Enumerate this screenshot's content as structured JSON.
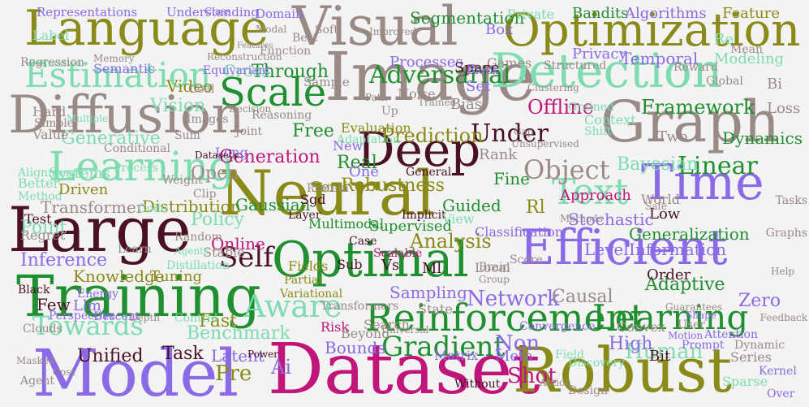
{
  "palette": {
    "background": "#f3f3f3",
    "olive": "#8a8a18",
    "green": "#1f8f2f",
    "mint": "#7ddcb0",
    "taupe": "#9a8a86",
    "purple": "#8a6ae6",
    "magenta": "#c0157a",
    "maroon": "#4a1024"
  },
  "words": [
    {
      "text": "Dataset",
      "color": "magenta"
    },
    {
      "text": "Model",
      "color": "purple"
    },
    {
      "text": "Robust",
      "color": "olive"
    },
    {
      "text": "Training",
      "color": "green"
    },
    {
      "text": "Large",
      "color": "maroon"
    },
    {
      "text": "Neural",
      "color": "olive"
    },
    {
      "text": "Image",
      "color": "taupe"
    },
    {
      "text": "Diffusion",
      "color": "taupe"
    },
    {
      "text": "Language",
      "color": "olive"
    },
    {
      "text": "Visual",
      "color": "taupe"
    },
    {
      "text": "Optimization",
      "color": "olive"
    },
    {
      "text": "Graph",
      "color": "taupe"
    },
    {
      "text": "Efficient",
      "color": "purple"
    },
    {
      "text": "Optimal",
      "color": "green"
    },
    {
      "text": "Deep",
      "color": "maroon"
    },
    {
      "text": "Detection",
      "color": "mint"
    },
    {
      "text": "Learning",
      "color": "mint"
    },
    {
      "text": "Time",
      "color": "purple"
    },
    {
      "text": "Reinforcement",
      "color": "green"
    },
    {
      "text": "Estimation",
      "color": "mint"
    },
    {
      "text": "Scale",
      "color": "green"
    },
    {
      "text": "Text",
      "color": "mint"
    },
    {
      "text": "Learning",
      "color": "green"
    },
    {
      "text": "Aware",
      "color": "mint"
    },
    {
      "text": "Adversarial",
      "color": "green"
    },
    {
      "text": "Towards",
      "color": "mint"
    },
    {
      "text": "Gradient",
      "color": "green"
    },
    {
      "text": "Self",
      "color": "maroon"
    },
    {
      "text": "Object",
      "color": "taupe"
    },
    {
      "text": "Linear",
      "color": "green"
    },
    {
      "text": "Network",
      "color": "purple"
    },
    {
      "text": "Shot",
      "color": "magenta"
    },
    {
      "text": "Human",
      "color": "mint"
    },
    {
      "text": "Under",
      "color": "maroon"
    },
    {
      "text": "Offline",
      "color": "magenta"
    },
    {
      "text": "Framework",
      "color": "green"
    },
    {
      "text": "Prediction",
      "color": "olive"
    },
    {
      "text": "Analysis",
      "color": "olive"
    },
    {
      "text": "Generation",
      "color": "magenta"
    },
    {
      "text": "Inference",
      "color": "purple"
    },
    {
      "text": "Benchmark",
      "color": "mint"
    },
    {
      "text": "Policy",
      "color": "mint"
    },
    {
      "text": "Transformer",
      "color": "taupe"
    },
    {
      "text": "Distribution",
      "color": "olive"
    },
    {
      "text": "Adaptive",
      "color": "green"
    },
    {
      "text": "Representations",
      "color": "purple"
    },
    {
      "text": "Understanding",
      "color": "purple"
    },
    {
      "text": "Segmentation",
      "color": "green"
    },
    {
      "text": "Private",
      "color": "mint"
    },
    {
      "text": "Bandits",
      "color": "green"
    },
    {
      "text": "Algorithms",
      "color": "purple"
    },
    {
      "text": "Feature",
      "color": "olive"
    },
    {
      "text": "Domain",
      "color": "purple"
    },
    {
      "text": "Box",
      "color": "purple"
    },
    {
      "text": "Temporal",
      "color": "purple"
    },
    {
      "text": "Modeling",
      "color": "mint"
    },
    {
      "text": "Privacy",
      "color": "purple"
    },
    {
      "text": "Games",
      "color": "taupe"
    },
    {
      "text": "Video",
      "color": "olive"
    },
    {
      "text": "Vision",
      "color": "mint"
    },
    {
      "text": "Through",
      "color": "green"
    },
    {
      "text": "Cross",
      "color": "mint"
    },
    {
      "text": "Semantic",
      "color": "purple"
    },
    {
      "text": "Free",
      "color": "green"
    },
    {
      "text": "Bayesian",
      "color": "mint"
    },
    {
      "text": "Dynamics",
      "color": "green"
    },
    {
      "text": "Generative",
      "color": "mint"
    },
    {
      "text": "Open",
      "color": "taupe"
    },
    {
      "text": "Long",
      "color": "purple"
    },
    {
      "text": "Rank",
      "color": "taupe"
    },
    {
      "text": "Fine",
      "color": "green"
    },
    {
      "text": "Guided",
      "color": "green"
    },
    {
      "text": "Semi",
      "color": "olive"
    },
    {
      "text": "Robustness",
      "color": "olive"
    },
    {
      "text": "Rl",
      "color": "olive"
    },
    {
      "text": "Approach",
      "color": "magenta"
    },
    {
      "text": "Low",
      "color": "maroon"
    },
    {
      "text": "World",
      "color": "taupe"
    },
    {
      "text": "Stochastic",
      "color": "purple"
    },
    {
      "text": "Generalization",
      "color": "green"
    },
    {
      "text": "Level",
      "color": "purple"
    },
    {
      "text": "Information",
      "color": "purple"
    },
    {
      "text": "Point",
      "color": "mint"
    },
    {
      "text": "Online",
      "color": "magenta"
    },
    {
      "text": "Gaussian",
      "color": "green"
    },
    {
      "text": "Supervised",
      "color": "green"
    },
    {
      "text": "Knowledge",
      "color": "olive"
    },
    {
      "text": "Tuning",
      "color": "olive"
    },
    {
      "text": "Stable",
      "color": "taupe"
    },
    {
      "text": "Multimodal",
      "color": "green"
    },
    {
      "text": "Classification",
      "color": "purple"
    },
    {
      "text": "Order",
      "color": "maroon"
    },
    {
      "text": "Zero",
      "color": "purple"
    },
    {
      "text": "Causal",
      "color": "taupe"
    },
    {
      "text": "Sampling",
      "color": "purple"
    },
    {
      "text": "Fast",
      "color": "olive"
    },
    {
      "text": "Non",
      "color": "purple"
    },
    {
      "text": "High",
      "color": "purple"
    },
    {
      "text": "Latent",
      "color": "purple"
    },
    {
      "text": "Bounds",
      "color": "purple"
    },
    {
      "text": "Unified",
      "color": "maroon"
    },
    {
      "text": "Task",
      "color": "maroon"
    },
    {
      "text": "Pre",
      "color": "olive"
    },
    {
      "text": "Ai",
      "color": "purple"
    },
    {
      "text": "Estimation",
      "color": "mint"
    },
    {
      "text": "Reasoning",
      "color": "taupe"
    },
    {
      "text": "Sample",
      "color": "taupe"
    },
    {
      "text": "Noise",
      "color": "taupe"
    },
    {
      "text": "Set",
      "color": "purple"
    },
    {
      "text": "Bias",
      "color": "taupe"
    },
    {
      "text": "Space",
      "color": "maroon"
    },
    {
      "text": "Methods",
      "color": "taupe"
    },
    {
      "text": "Regret",
      "color": "taupe"
    },
    {
      "text": "Test",
      "color": "maroon"
    },
    {
      "text": "Sparse",
      "color": "mint"
    },
    {
      "text": "Series",
      "color": "taupe"
    },
    {
      "text": "Kernel",
      "color": "purple"
    },
    {
      "text": "Over",
      "color": "purple"
    },
    {
      "text": "Two",
      "color": "taupe"
    },
    {
      "text": "Loss",
      "color": "taupe"
    },
    {
      "text": "Tasks",
      "color": "taupe"
    },
    {
      "text": "Graphs",
      "color": "taupe"
    },
    {
      "text": "Regression",
      "color": "taupe"
    },
    {
      "text": "Memory",
      "color": "taupe"
    },
    {
      "text": "Label",
      "color": "mint"
    },
    {
      "text": "Alignment",
      "color": "mint"
    },
    {
      "text": "Better",
      "color": "mint"
    },
    {
      "text": "Method",
      "color": "mint"
    },
    {
      "text": "Value",
      "color": "taupe"
    },
    {
      "text": "Simple",
      "color": "taupe"
    },
    {
      "text": "Hard",
      "color": "taupe"
    },
    {
      "text": "Few",
      "color": "maroon"
    },
    {
      "text": "Llm",
      "color": "purple"
    },
    {
      "text": "Black",
      "color": "maroon"
    },
    {
      "text": "Energy",
      "color": "purple"
    },
    {
      "text": "Descent",
      "color": "purple"
    },
    {
      "text": "Perspective",
      "color": "purple"
    },
    {
      "text": "Depth",
      "color": "taupe"
    },
    {
      "text": "Control",
      "color": "mint"
    },
    {
      "text": "Power",
      "color": "maroon"
    },
    {
      "text": "Real",
      "color": "green"
    },
    {
      "text": "New",
      "color": "purple"
    },
    {
      "text": "Evaluation",
      "color": "olive"
    },
    {
      "text": "Adaptation",
      "color": "mint"
    },
    {
      "text": "Datasets",
      "color": "maroon"
    },
    {
      "text": "Sum",
      "color": "taupe"
    },
    {
      "text": "Joint",
      "color": "taupe"
    },
    {
      "text": "Clip",
      "color": "taupe"
    },
    {
      "text": "Random",
      "color": "taupe"
    },
    {
      "text": "Distillation",
      "color": "mint"
    },
    {
      "text": "Agents",
      "color": "mint"
    },
    {
      "text": "Learn",
      "color": "taupe"
    },
    {
      "text": "Variational",
      "color": "olive"
    },
    {
      "text": "Transformers",
      "color": "taupe"
    },
    {
      "text": "Fields",
      "color": "olive"
    },
    {
      "text": "Partial",
      "color": "olive"
    },
    {
      "text": "Sub",
      "color": "maroon"
    },
    {
      "text": "Vs",
      "color": "maroon"
    },
    {
      "text": "Ml",
      "color": "maroon"
    },
    {
      "text": "Local",
      "color": "taupe"
    },
    {
      "text": "Score",
      "color": "taupe"
    },
    {
      "text": "State",
      "color": "taupe"
    },
    {
      "text": "Convex",
      "color": "taupe"
    },
    {
      "text": "Matrix",
      "color": "purple"
    },
    {
      "text": "Meta",
      "color": "purple"
    },
    {
      "text": "Convergence",
      "color": "purple"
    },
    {
      "text": "Discovery",
      "color": "mint"
    },
    {
      "text": "Design",
      "color": "taupe"
    },
    {
      "text": "Without",
      "color": "maroon"
    },
    {
      "text": "Bit",
      "color": "maroon"
    },
    {
      "text": "Prompt",
      "color": "purple"
    },
    {
      "text": "Attention",
      "color": "purple"
    },
    {
      "text": "Motion",
      "color": "purple"
    },
    {
      "text": "Dynamic",
      "color": "taupe"
    },
    {
      "text": "Feedback",
      "color": "taupe"
    },
    {
      "text": "Help",
      "color": "taupe"
    },
    {
      "text": "User",
      "color": "taupe"
    },
    {
      "text": "Shape",
      "color": "purple"
    },
    {
      "text": "Action",
      "color": "taupe"
    },
    {
      "text": "Field",
      "color": "mint"
    },
    {
      "text": "Risk",
      "color": "magenta"
    },
    {
      "text": "Scalable",
      "color": "magenta"
    },
    {
      "text": "Implicit",
      "color": "maroon"
    },
    {
      "text": "Case",
      "color": "maroon"
    },
    {
      "text": "View",
      "color": "mint"
    },
    {
      "text": "One",
      "color": "purple"
    },
    {
      "text": "General",
      "color": "maroon"
    },
    {
      "text": "Layer",
      "color": "maroon"
    },
    {
      "text": "Sgd",
      "color": "maroon"
    },
    {
      "text": "Protein",
      "color": "taupe"
    },
    {
      "text": "Weight",
      "color": "taupe"
    },
    {
      "text": "Code",
      "color": "mint"
    },
    {
      "text": "Driven",
      "color": "olive"
    },
    {
      "text": "Systems",
      "color": "mint"
    },
    {
      "text": "Multiple",
      "color": "mint"
    },
    {
      "text": "Conditional",
      "color": "taupe"
    },
    {
      "text": "Process",
      "color": "mint"
    },
    {
      "text": "Goal",
      "color": "taupe"
    },
    {
      "text": "Equivariant",
      "color": "purple"
    },
    {
      "text": "Images",
      "color": "taupe"
    },
    {
      "text": "Decision",
      "color": "taupe"
    },
    {
      "text": "Global",
      "color": "taupe"
    },
    {
      "text": "Mean",
      "color": "taupe"
    },
    {
      "text": "Reward",
      "color": "taupe"
    },
    {
      "text": "Shift",
      "color": "mint"
    },
    {
      "text": "Context",
      "color": "mint"
    },
    {
      "text": "Grained",
      "color": "mint"
    },
    {
      "text": "Clustering",
      "color": "taupe"
    },
    {
      "text": "Gap",
      "color": "taupe"
    },
    {
      "text": "Unsupervised",
      "color": "taupe"
    },
    {
      "text": "Structured",
      "color": "taupe"
    },
    {
      "text": "Processes",
      "color": "purple"
    },
    {
      "text": "Best",
      "color": "taupe"
    },
    {
      "text": "Function",
      "color": "taupe"
    },
    {
      "text": "Reconstruction",
      "color": "taupe"
    },
    {
      "text": "Features",
      "color": "taupe"
    },
    {
      "text": "Modal",
      "color": "taupe"
    },
    {
      "text": "Soft",
      "color": "taupe"
    },
    {
      "text": "Class",
      "color": "purple"
    },
    {
      "text": "Improved",
      "color": "taupe"
    },
    {
      "text": "Block",
      "color": "purple"
    },
    {
      "text": "Trained",
      "color": "taupe"
    },
    {
      "text": "Up",
      "color": "taupe"
    },
    {
      "text": "Path",
      "color": "taupe"
    },
    {
      "text": "Re",
      "color": "mint"
    },
    {
      "text": "Bi",
      "color": "taupe"
    },
    {
      "text": "Safe",
      "color": "taupe"
    },
    {
      "text": "Universal",
      "color": "taupe"
    },
    {
      "text": "Beyond",
      "color": "taupe"
    },
    {
      "text": "Search",
      "color": "taupe"
    },
    {
      "text": "Brain",
      "color": "taupe"
    },
    {
      "text": "Group",
      "color": "taupe"
    },
    {
      "text": "Guarantees",
      "color": "taupe"
    },
    {
      "text": "Cost",
      "color": "taupe"
    },
    {
      "text": "Agent",
      "color": "taupe"
    },
    {
      "text": "Masked",
      "color": "taupe"
    },
    {
      "text": "Clouds",
      "color": "taupe"
    }
  ]
}
